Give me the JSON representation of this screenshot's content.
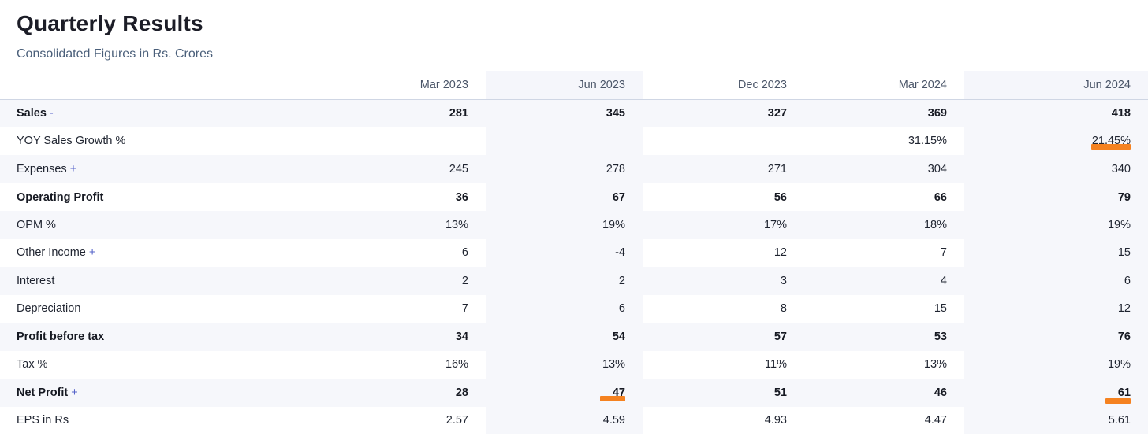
{
  "header": {
    "title": "Quarterly Results",
    "subtitle": "Consolidated Figures in Rs. Crores"
  },
  "table": {
    "columns": [
      "Mar 2023",
      "Jun 2023",
      "Dec 2023",
      "Mar 2024",
      "Jun 2024"
    ],
    "rows": [
      {
        "label": "Sales",
        "toggle": "-",
        "values": [
          "281",
          "345",
          "327",
          "369",
          "418"
        ]
      },
      {
        "label": "YOY Sales Growth %",
        "toggle": "",
        "values": [
          "",
          "",
          "",
          "31.15%",
          "21.45%"
        ]
      },
      {
        "label": "Expenses",
        "toggle": "+",
        "values": [
          "245",
          "278",
          "271",
          "304",
          "340"
        ]
      },
      {
        "label": "Operating Profit",
        "toggle": "",
        "values": [
          "36",
          "67",
          "56",
          "66",
          "79"
        ]
      },
      {
        "label": "OPM %",
        "toggle": "",
        "values": [
          "13%",
          "19%",
          "17%",
          "18%",
          "19%"
        ]
      },
      {
        "label": "Other Income",
        "toggle": "+",
        "values": [
          "6",
          "-4",
          "12",
          "7",
          "15"
        ]
      },
      {
        "label": "Interest",
        "toggle": "",
        "values": [
          "2",
          "2",
          "3",
          "4",
          "6"
        ]
      },
      {
        "label": "Depreciation",
        "toggle": "",
        "values": [
          "7",
          "6",
          "8",
          "15",
          "12"
        ]
      },
      {
        "label": "Profit before tax",
        "toggle": "",
        "values": [
          "34",
          "54",
          "57",
          "53",
          "76"
        ]
      },
      {
        "label": "Tax %",
        "toggle": "",
        "values": [
          "16%",
          "13%",
          "11%",
          "13%",
          "19%"
        ]
      },
      {
        "label": "Net Profit",
        "toggle": "+",
        "values": [
          "28",
          "47",
          "51",
          "46",
          "61"
        ]
      },
      {
        "label": "EPS in Rs",
        "toggle": "",
        "values": [
          "2.57",
          "4.59",
          "4.93",
          "4.47",
          "5.61"
        ]
      }
    ]
  },
  "colors": {
    "highlight_mark": "#f58220",
    "toggle": "#5563c9",
    "subtitle": "#4a5f7a"
  }
}
